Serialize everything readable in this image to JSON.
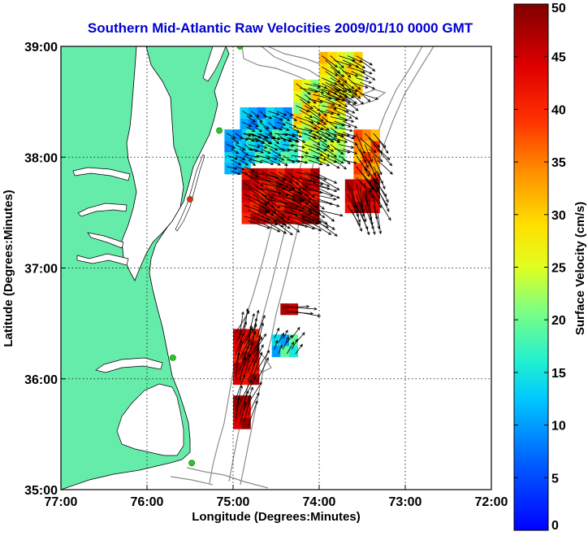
{
  "chart_data": {
    "type": "heatmap",
    "title": "Southern Mid-Atlantic Raw Velocities 2009/01/10 0000 GMT",
    "xlabel": "Longitude (Degrees:Minutes)",
    "ylabel": "Latitude (Degrees:Minutes)",
    "xlim": [
      -77,
      -72
    ],
    "ylim": [
      35,
      39
    ],
    "x_ticks": [
      -77,
      -76,
      -75,
      -74,
      -73,
      -72
    ],
    "x_tick_labels": [
      "77:00",
      "76:00",
      "75:00",
      "74:00",
      "73:00",
      "72:00"
    ],
    "y_ticks": [
      35,
      36,
      37,
      38,
      39
    ],
    "y_tick_labels": [
      "35:00",
      "36:00",
      "37:00",
      "38:00",
      "39:00"
    ],
    "grid": true,
    "colorbar": {
      "label": "Surface Velocity (cm/s)",
      "range": [
        0,
        50
      ],
      "ticks": [
        0,
        5,
        10,
        15,
        20,
        25,
        30,
        35,
        40,
        45,
        50
      ],
      "tick_labels": [
        "0",
        "5",
        "10",
        "15",
        "20",
        "25",
        "30",
        "35",
        "40",
        "45",
        "50"
      ]
    },
    "colors": {
      "land": "#66ecaa",
      "contour": "#8c8c8c",
      "grid": "#000000",
      "title": "#0000d0",
      "station_active": "#22cc22",
      "station_inactive": "#ee2222"
    },
    "stations": [
      {
        "lon": -74.92,
        "lat": 39.0,
        "status": "active"
      },
      {
        "lon": -75.16,
        "lat": 38.24,
        "status": "active"
      },
      {
        "lon": -75.5,
        "lat": 37.62,
        "status": "inactive"
      },
      {
        "lon": -75.7,
        "lat": 36.19,
        "status": "active"
      },
      {
        "lon": -75.48,
        "lat": 35.24,
        "status": "active"
      }
    ],
    "velocity_field": {
      "cell_size_deg": [
        0.1,
        0.1
      ],
      "regions": [
        {
          "lon": [
            -74.92,
            -74.32
          ],
          "lat": [
            38.15,
            38.45
          ],
          "speed": [
            8,
            16
          ],
          "dir_deg": 120
        },
        {
          "lon": [
            -74.3,
            -73.7
          ],
          "lat": [
            38.2,
            38.75
          ],
          "speed": [
            20,
            32
          ],
          "dir_deg": 115
        },
        {
          "lon": [
            -74.0,
            -73.5
          ],
          "lat": [
            38.55,
            38.95
          ],
          "speed": [
            24,
            32
          ],
          "dir_deg": 120
        },
        {
          "lon": [
            -75.1,
            -74.85
          ],
          "lat": [
            37.85,
            38.3
          ],
          "speed": [
            8,
            14
          ],
          "dir_deg": 115
        },
        {
          "lon": [
            -74.85,
            -74.2
          ],
          "lat": [
            37.95,
            38.2
          ],
          "speed": [
            12,
            20
          ],
          "dir_deg": 110
        },
        {
          "lon": [
            -74.2,
            -73.7
          ],
          "lat": [
            37.95,
            38.25
          ],
          "speed": [
            18,
            25
          ],
          "dir_deg": 115
        },
        {
          "lon": [
            -74.9,
            -74.0
          ],
          "lat": [
            37.4,
            37.9
          ],
          "speed": [
            40,
            48
          ],
          "dir_deg": 115
        },
        {
          "lon": [
            -73.6,
            -73.25
          ],
          "lat": [
            37.75,
            38.2
          ],
          "speed": [
            30,
            40
          ],
          "dir_deg": 145
        },
        {
          "lon": [
            -73.7,
            -73.3
          ],
          "lat": [
            37.5,
            37.75
          ],
          "speed": [
            42,
            50
          ],
          "dir_deg": 160
        },
        {
          "lon": [
            -75.0,
            -74.75
          ],
          "lat": [
            35.95,
            36.45
          ],
          "speed": [
            40,
            48
          ],
          "dir_deg": 20
        },
        {
          "lon": [
            -74.55,
            -74.3
          ],
          "lat": [
            36.2,
            36.4
          ],
          "speed": [
            10,
            22
          ],
          "dir_deg": 30
        },
        {
          "lon": [
            -74.45,
            -74.25
          ],
          "lat": [
            36.58,
            36.68
          ],
          "speed": [
            44,
            50
          ],
          "dir_deg": 100
        },
        {
          "lon": [
            -75.0,
            -74.8
          ],
          "lat": [
            35.55,
            35.8
          ],
          "speed": [
            44,
            50
          ],
          "dir_deg": 20
        }
      ]
    }
  }
}
